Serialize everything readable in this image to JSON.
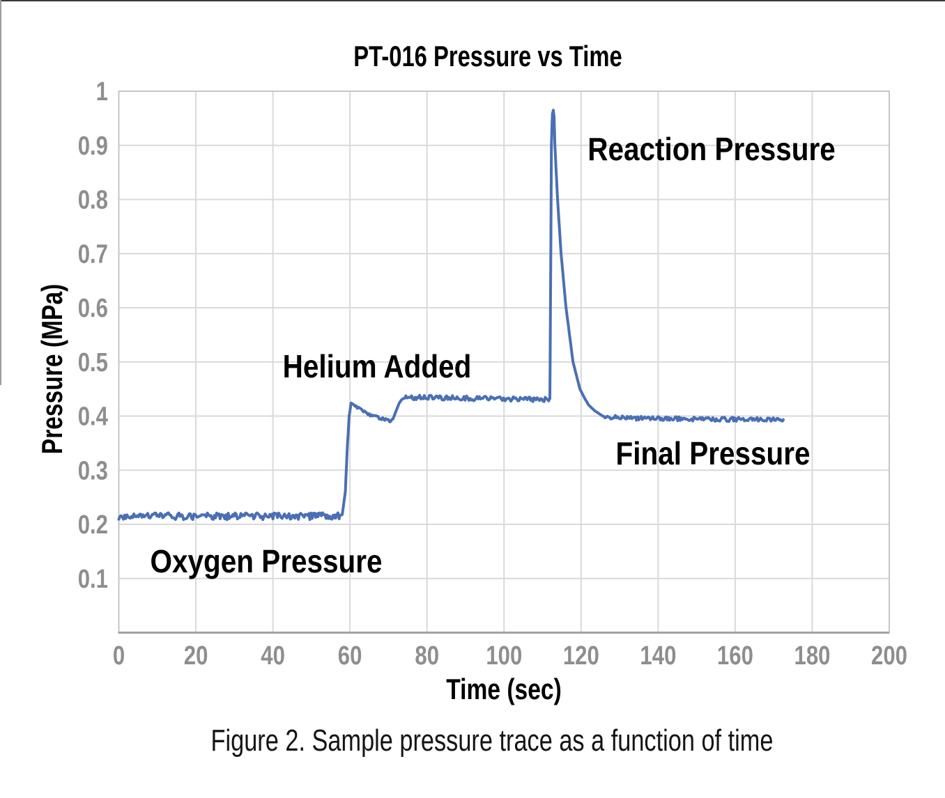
{
  "page": {
    "caption": "Figure 2. Sample pressure trace as a function of time"
  },
  "chart_data": {
    "type": "line",
    "title": "PT-016 Pressure vs Time",
    "xlabel": "Time (sec)",
    "ylabel": "Pressure (MPa)",
    "xlim": [
      0,
      200
    ],
    "ylim": [
      0,
      1
    ],
    "x_ticks": [
      0,
      20,
      40,
      60,
      80,
      100,
      120,
      140,
      160,
      180,
      200
    ],
    "y_ticks": [
      0.1,
      0.2,
      0.3,
      0.4,
      0.5,
      0.6,
      0.7,
      0.8,
      0.9,
      1
    ],
    "grid": true,
    "legend": "none",
    "line_color": "#4a6fb5",
    "grid_color": "#d9d9d9",
    "tick_color": "#8e8e8e",
    "series": [
      {
        "name": "PT-016 pressure trace",
        "points": [
          [
            0,
            0.215
          ],
          [
            20,
            0.215
          ],
          [
            40,
            0.215
          ],
          [
            56,
            0.215
          ],
          [
            57.2,
            0.216
          ],
          [
            58,
            0.218
          ],
          [
            58.8,
            0.26
          ],
          [
            59.3,
            0.34
          ],
          [
            59.8,
            0.4
          ],
          [
            60.3,
            0.424
          ],
          [
            61,
            0.421
          ],
          [
            62,
            0.415
          ],
          [
            63.5,
            0.408
          ],
          [
            65,
            0.403
          ],
          [
            67,
            0.398
          ],
          [
            69,
            0.394
          ],
          [
            70.3,
            0.391
          ],
          [
            71.2,
            0.395
          ],
          [
            72,
            0.41
          ],
          [
            72.8,
            0.424
          ],
          [
            73.5,
            0.431
          ],
          [
            74.5,
            0.434
          ],
          [
            80,
            0.434
          ],
          [
            90,
            0.433
          ],
          [
            100,
            0.432
          ],
          [
            108,
            0.431
          ],
          [
            111.6,
            0.43
          ],
          [
            111.9,
            0.432
          ],
          [
            112.1,
            0.65
          ],
          [
            112.3,
            0.9
          ],
          [
            112.55,
            0.958
          ],
          [
            112.8,
            0.965
          ],
          [
            113.0,
            0.952
          ],
          [
            113.2,
            0.9
          ],
          [
            113.9,
            0.8
          ],
          [
            114.8,
            0.7
          ],
          [
            116.1,
            0.6
          ],
          [
            117.9,
            0.5
          ],
          [
            119.7,
            0.45
          ],
          [
            121,
            0.432
          ],
          [
            122,
            0.42
          ],
          [
            123.5,
            0.41
          ],
          [
            125.6,
            0.4
          ],
          [
            128,
            0.398
          ],
          [
            132,
            0.396
          ],
          [
            140,
            0.395
          ],
          [
            150,
            0.3945
          ],
          [
            160,
            0.394
          ],
          [
            166,
            0.394
          ],
          [
            172.5,
            0.3935
          ]
        ]
      }
    ],
    "noise_regions": [
      {
        "from": 0,
        "to": 57.2,
        "amp": 0.0065
      },
      {
        "from": 61,
        "to": 70.8,
        "amp": 0.0025
      },
      {
        "from": 74.5,
        "to": 111.6,
        "amp": 0.0045
      },
      {
        "from": 126,
        "to": 172.5,
        "amp": 0.004
      }
    ],
    "annotations": [
      {
        "text": "Reaction Pressure",
        "t": 153.9,
        "p": 0.893
      },
      {
        "text": "Helium Added",
        "t": 67.1,
        "p": 0.492
      },
      {
        "text": "Final Pressure",
        "t": 154.3,
        "p": 0.331
      },
      {
        "text": "Oxygen Pressure",
        "t": 38.3,
        "p": 0.132
      }
    ]
  }
}
